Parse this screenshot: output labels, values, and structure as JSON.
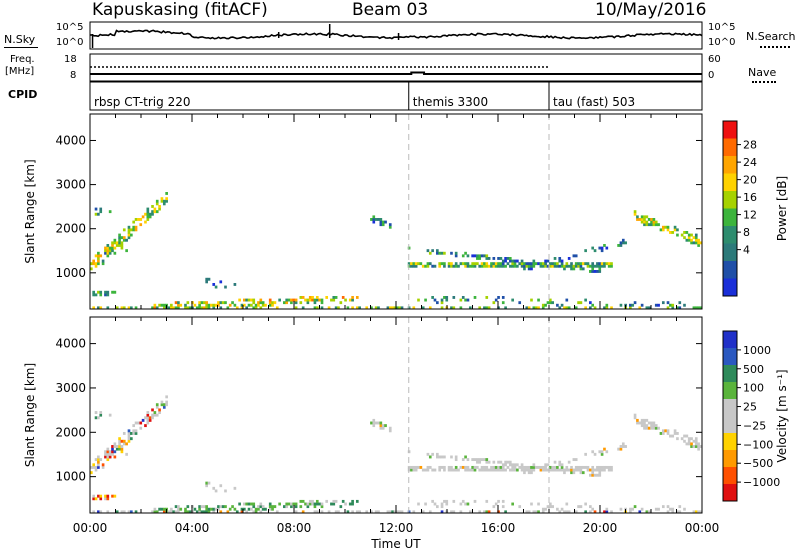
{
  "header": {
    "station": "Kapuskasing (fitACF)",
    "beam": "Beam 03",
    "date": "10/May/2016"
  },
  "top_panels": {
    "nsky_label": "N.Sky",
    "nsearch_label": "N.Search",
    "freq_label_line1": "Freq.",
    "freq_label_line2": "[MHz]",
    "nave_label": "Nave",
    "cpid_label": "CPID",
    "noise_ticks_left": [
      "10^5",
      "10^0"
    ],
    "noise_ticks_right": [
      "10^5",
      "10^0"
    ],
    "freq_ticks_left": [
      "18",
      "8"
    ],
    "nave_ticks_right": [
      "60",
      "0"
    ],
    "cpid_segments": [
      {
        "name": "rbsp CT-trig 220",
        "start_hour": 0,
        "end_hour": 12.5
      },
      {
        "name": "themis 3300",
        "start_hour": 12.5,
        "end_hour": 18.0
      },
      {
        "name": "tau (fast) 503",
        "start_hour": 18.0,
        "end_hour": 24
      }
    ]
  },
  "chart_data": [
    {
      "type": "heatmap",
      "panel": "power",
      "ylabel": "Slant Range [km]",
      "xlabel": "",
      "xlim_hours": [
        0,
        24
      ],
      "ylim": [
        180,
        4600
      ],
      "yticks": [
        1000,
        2000,
        3000,
        4000
      ],
      "colorbar": {
        "label": "Power [dB]",
        "ticks": [
          "28",
          "24",
          "20",
          "16",
          "12",
          "8",
          "4"
        ],
        "colors": [
          "#ee1010",
          "#ff6a00",
          "#ffa500",
          "#ffd200",
          "#a6d200",
          "#3cb43c",
          "#2d8c6e",
          "#2c7a7a",
          "#1f4fa8",
          "#1a2fd8"
        ]
      }
    },
    {
      "type": "heatmap",
      "panel": "velocity",
      "ylabel": "Slant Range [km]",
      "xlabel": "Time UT",
      "xlim_hours": [
        0,
        24
      ],
      "ylim": [
        180,
        4600
      ],
      "yticks": [
        1000,
        2000,
        3000,
        4000
      ],
      "xticks": [
        "00:00",
        "04:00",
        "08:00",
        "12:00",
        "16:00",
        "20:00",
        "00:00"
      ],
      "colorbar": {
        "label": "Velocity [m s⁻¹]",
        "ticks": [
          "1000",
          "500",
          "100",
          "25",
          "−25",
          "−100",
          "−500",
          "−1000"
        ],
        "colors": [
          "#2030c8",
          "#2a58c0",
          "#2e8a5a",
          "#5ab43c",
          "#c8c8c8",
          "#c8c8c8",
          "#ffd200",
          "#ff9a00",
          "#ff5000",
          "#e01010"
        ]
      }
    }
  ]
}
